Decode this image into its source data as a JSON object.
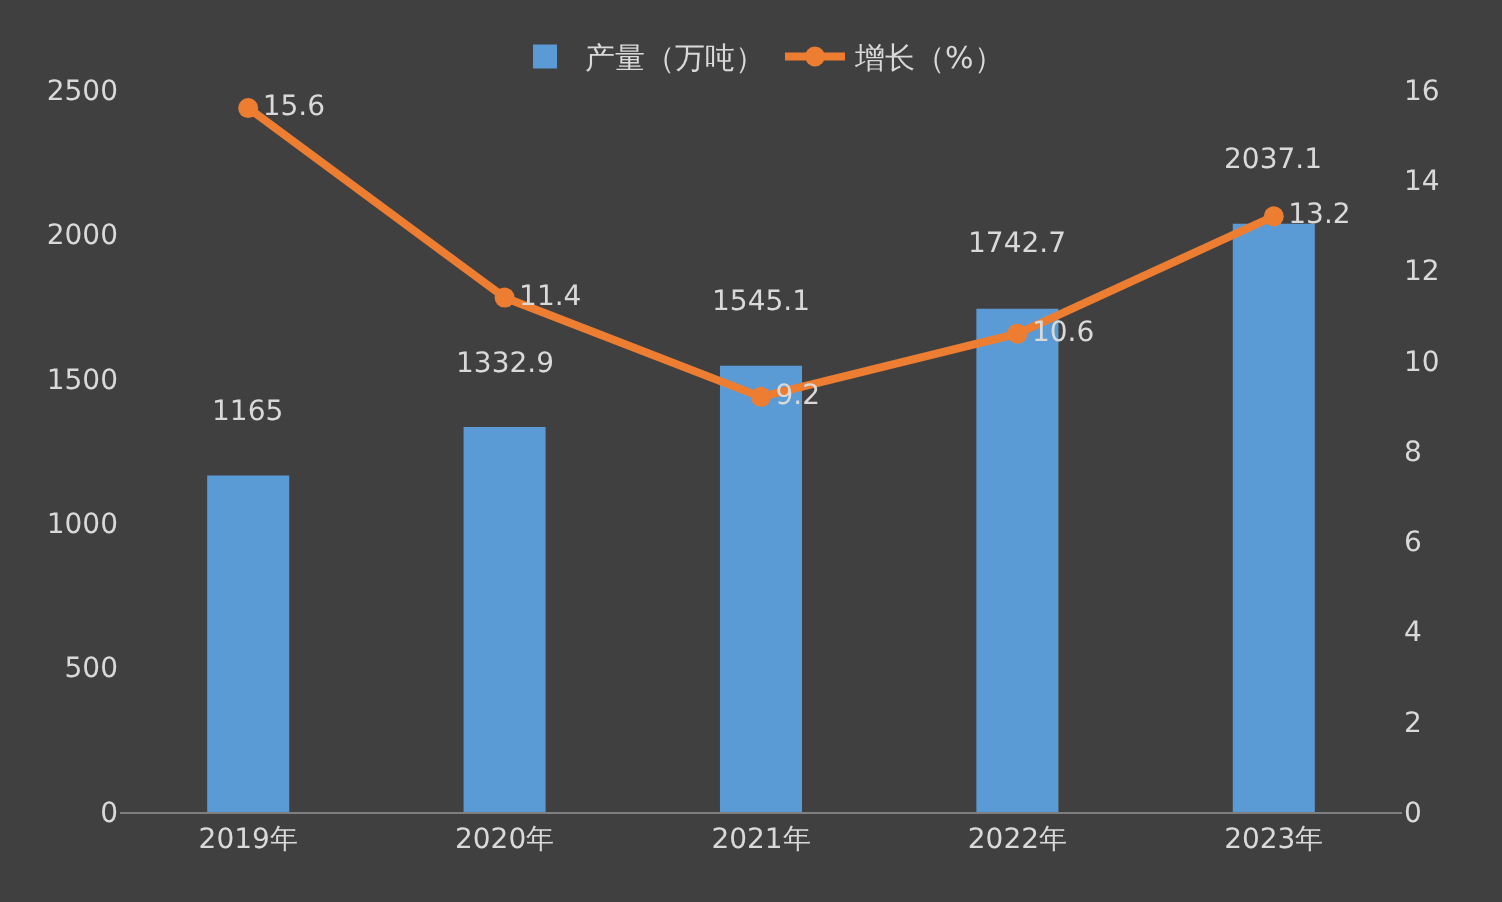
{
  "chart_data": {
    "type": "bar",
    "categories": [
      "2019年",
      "2020年",
      "2021年",
      "2022年",
      "2023年"
    ],
    "series": [
      {
        "name": "产量（万吨）",
        "color": "#5b9bd5",
        "values": [
          1165,
          1332.9,
          1545.1,
          1742.7,
          2037.1
        ]
      },
      {
        "name": "增长（%）",
        "type": "line",
        "axis": "y2",
        "color": "#ed7d31",
        "values": [
          15.6,
          11.4,
          9.2,
          10.6,
          13.2
        ]
      }
    ],
    "ylim": [
      0,
      2500
    ],
    "yticks": [
      0,
      500,
      1000,
      1500,
      2000,
      2500
    ],
    "y2lim": [
      0,
      16
    ],
    "y2ticks": [
      0,
      2,
      4,
      6,
      8,
      10,
      12,
      14,
      16
    ],
    "data_labels": true,
    "legend": "top",
    "grid": false,
    "marker": "circle",
    "line_style": "solid"
  }
}
